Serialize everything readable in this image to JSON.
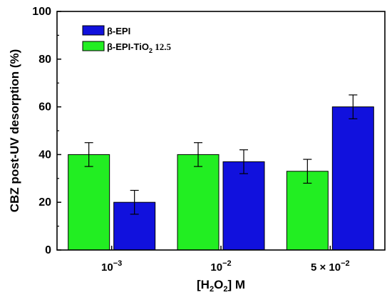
{
  "chart_data": {
    "type": "bar",
    "categories": [
      "10",
      "10",
      "5 × 10"
    ],
    "category_exponents": [
      "−3",
      "−2",
      "−2"
    ],
    "series": [
      {
        "name_main": "β-EPI-TiO",
        "name_sub": "2",
        "name_tail": " 12.5",
        "color": "#22ee22",
        "values": [
          40,
          40,
          33
        ],
        "errors": [
          5,
          5,
          5
        ]
      },
      {
        "name_main": "β-EPI",
        "name_sub": "",
        "name_tail": "",
        "color": "#1111dd",
        "values": [
          20,
          37,
          60
        ],
        "errors": [
          5,
          5,
          5
        ]
      }
    ],
    "legend_order": [
      1,
      0
    ],
    "ylabel": "CBZ post-UV desorption (%)",
    "xlabel_parts": [
      "[H",
      "2",
      "O",
      "2",
      "] M"
    ],
    "ylim": [
      0,
      100
    ],
    "yticks": [
      "0",
      "20",
      "40",
      "60",
      "80",
      "100"
    ],
    "legend_position": "top-left"
  }
}
